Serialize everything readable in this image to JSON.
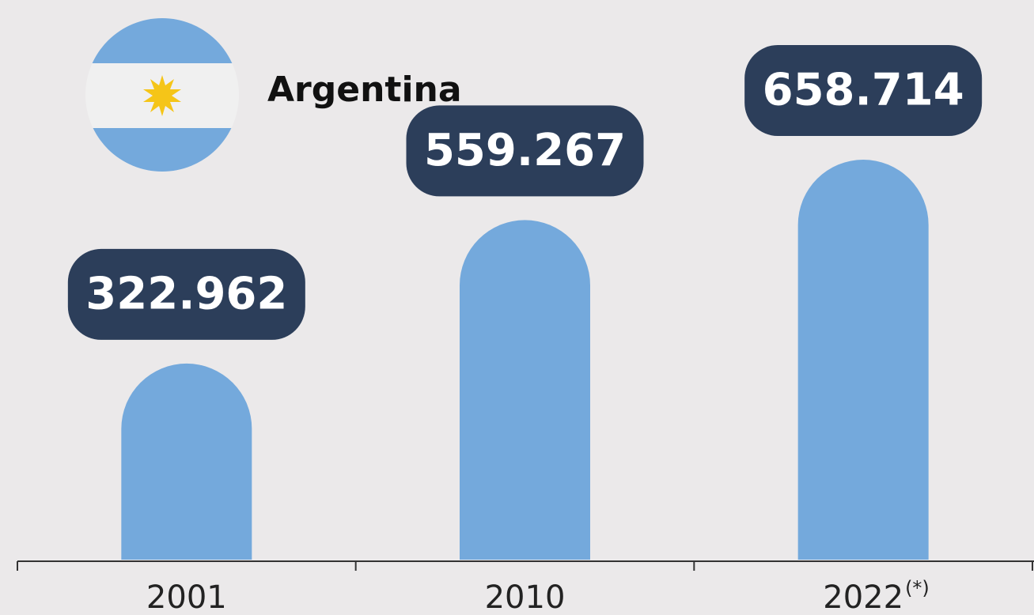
{
  "chart_data": {
    "type": "bar",
    "title": "Argentina",
    "categories": [
      "2001",
      "2010",
      "2022"
    ],
    "values": [
      322962,
      559267,
      658714
    ],
    "value_labels": [
      "322.962",
      "559.267",
      "658.714"
    ],
    "annotation": "(*)",
    "color": "#74a9dc"
  }
}
